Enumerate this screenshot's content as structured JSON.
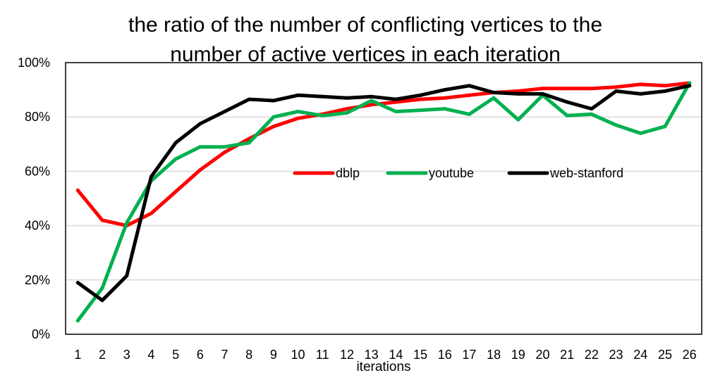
{
  "chart_data": {
    "type": "line",
    "title_lines": [
      "the ratio of the number of conflicting vertices to the",
      "number of active vertices in each iteration"
    ],
    "xlabel": "iterations",
    "ylabel": "",
    "categories": [
      "1",
      "2",
      "3",
      "4",
      "5",
      "6",
      "7",
      "8",
      "9",
      "10",
      "11",
      "12",
      "13",
      "14",
      "15",
      "16",
      "17",
      "18",
      "19",
      "20",
      "21",
      "22",
      "23",
      "24",
      "25",
      "26"
    ],
    "y_ticks": [
      "0%",
      "20%",
      "40%",
      "60%",
      "80%",
      "100%"
    ],
    "ylim": [
      0,
      100
    ],
    "grid": "horizontal",
    "legend_position": "center",
    "series": [
      {
        "name": "dblp",
        "color": "#ff0000",
        "values": [
          53,
          42,
          40,
          44.5,
          52.5,
          60.5,
          67,
          72,
          76.5,
          79.5,
          81,
          83,
          84.5,
          85.5,
          86.5,
          87,
          88,
          89,
          89.5,
          90.5,
          90.5,
          90.5,
          91,
          92,
          91.5,
          92.5
        ]
      },
      {
        "name": "youtube",
        "color": "#00b050",
        "values": [
          5,
          17,
          41,
          56.5,
          64.5,
          69,
          69,
          70.5,
          80,
          82,
          80.5,
          81.5,
          86,
          82,
          82.5,
          83,
          81,
          87,
          79,
          88,
          80.5,
          81,
          77,
          74,
          76.5,
          92.5
        ]
      },
      {
        "name": "web-stanford",
        "color": "#000000",
        "values": [
          19,
          12.5,
          21.5,
          58,
          70.5,
          77.5,
          82,
          86.5,
          86,
          88,
          87.5,
          87,
          87.5,
          86.5,
          88,
          90,
          91.5,
          89,
          88.5,
          88.5,
          85.5,
          83,
          89.5,
          88.5,
          89.5,
          91.5
        ]
      }
    ]
  }
}
